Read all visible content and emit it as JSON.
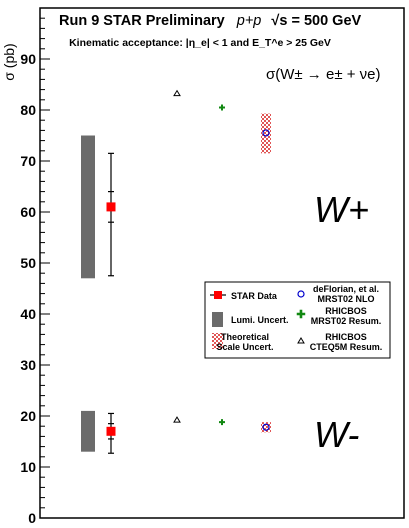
{
  "header": {
    "title": "Run 9 STAR Preliminary",
    "collision": "p+p",
    "sqrt_s": "√s = 500 GeV",
    "subtitle": "Kinematic acceptance: |η_e| < 1 and E_T^e > 25 GeV",
    "formula": "σ(W± → e± + νe)"
  },
  "labels": {
    "w_plus": "W+",
    "w_minus": "W-"
  },
  "chart_data": {
    "type": "scatter",
    "ylabel": "σ (pb)",
    "ylim": [
      0,
      100
    ],
    "yticks": [
      0,
      10,
      20,
      30,
      40,
      50,
      60,
      70,
      80,
      90
    ],
    "series": [
      {
        "name": "STAR Data",
        "color": "#ff0000",
        "marker": "square",
        "points": [
          {
            "group": "W+",
            "value": 61,
            "stat_err": [
              3,
              3
            ],
            "total_err": [
              13.5,
              10.5
            ],
            "lumi_band": [
              47,
              75
            ]
          },
          {
            "group": "W-",
            "value": 17,
            "stat_err": [
              1.5,
              1.5
            ],
            "total_err": [
              4.3,
              3.5
            ],
            "lumi_band": [
              13,
              21
            ]
          }
        ]
      },
      {
        "name": "deFlorian, et al. MRST02 NLO",
        "color": "#0000cc",
        "marker": "circle",
        "points": [
          {
            "group": "W+",
            "value": 75.5,
            "scale_band": [
              71.5,
              79.3
            ]
          },
          {
            "group": "W-",
            "value": 17.8,
            "scale_band": [
              16.8,
              18.8
            ]
          }
        ]
      },
      {
        "name": "RHICBOS MRST02 Resum.",
        "color": "#118811",
        "marker": "cross",
        "points": [
          {
            "group": "W+",
            "value": 80.5
          },
          {
            "group": "W-",
            "value": 18.8
          }
        ]
      },
      {
        "name": "RHICBOS CTEQ5M Resum.",
        "color": "#000000",
        "marker": "triangle",
        "points": [
          {
            "group": "W+",
            "value": 83.2
          },
          {
            "group": "W-",
            "value": 19.2
          }
        ]
      }
    ]
  },
  "legend": {
    "position": "center-right",
    "entries": [
      {
        "key": "star",
        "lines": [
          "STAR Data"
        ]
      },
      {
        "key": "deflorian",
        "lines": [
          "deFlorian, et al.",
          "MRST02 NLO"
        ]
      },
      {
        "key": "lumi",
        "lines": [
          "Lumi. Uncert."
        ]
      },
      {
        "key": "mrst",
        "lines": [
          "RHICBOS",
          "MRST02 Resum."
        ]
      },
      {
        "key": "scale",
        "lines": [
          "Theoretical",
          "Scale Uncert."
        ]
      },
      {
        "key": "cteq",
        "lines": [
          "RHICBOS",
          "CTEQ5M Resum."
        ]
      }
    ]
  }
}
